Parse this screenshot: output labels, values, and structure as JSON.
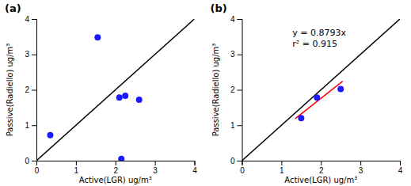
{
  "chart_data": [
    {
      "type": "scatter",
      "title": "(a)",
      "xlabel": "Active(LGR) ug/m³",
      "ylabel": "Passive(Radiello) ug/m³",
      "series": [
        {
          "type": "line",
          "color": "black",
          "x": [
            0,
            4
          ],
          "values": [
            0,
            4
          ]
        },
        {
          "type": "scatter",
          "color": "#1a1aff",
          "x": [
            0.35,
            1.55,
            2.1,
            2.25,
            2.6,
            2.15
          ],
          "values": [
            0.72,
            3.48,
            1.78,
            1.83,
            1.72,
            0.05
          ]
        }
      ],
      "xlim": [
        0,
        4
      ],
      "ylim": [
        0,
        4
      ],
      "xticks": [
        0,
        1,
        2,
        3,
        4
      ],
      "yticks": [
        0,
        1,
        2,
        3,
        4
      ]
    },
    {
      "type": "scatter",
      "title": "(b)",
      "xlabel": "Active(LGR) ug/m³",
      "ylabel": "Passive(Radiello) ug/m³",
      "series": [
        {
          "type": "line",
          "color": "black",
          "x": [
            0,
            4
          ],
          "values": [
            0,
            4
          ]
        },
        {
          "type": "line",
          "color": "red",
          "x": [
            1.35,
            2.55
          ],
          "values": [
            1.187,
            2.242
          ]
        },
        {
          "type": "scatter",
          "color": "#1a1aff",
          "x": [
            1.5,
            1.9,
            2.5
          ],
          "values": [
            1.2,
            1.78,
            2.02
          ]
        }
      ],
      "annotations": [
        "y = 0.8793x",
        "r² = 0.915"
      ],
      "xlim": [
        0,
        4
      ],
      "ylim": [
        0,
        4
      ],
      "xticks": [
        0,
        1,
        2,
        3,
        4
      ],
      "yticks": [
        0,
        1,
        2,
        3,
        4
      ]
    }
  ]
}
